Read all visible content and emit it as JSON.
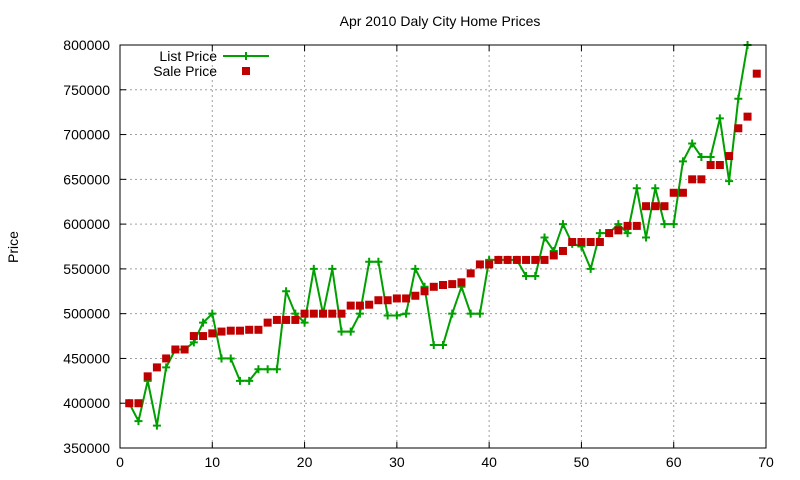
{
  "chart_data": {
    "type": "line",
    "title": "Apr 2010 Daly City Home Prices",
    "xlabel": "",
    "ylabel": "Price",
    "xlim": [
      0,
      70
    ],
    "ylim": [
      350000,
      800000
    ],
    "xticks": [
      0,
      10,
      20,
      30,
      40,
      50,
      60,
      70
    ],
    "yticks": [
      350000,
      400000,
      450000,
      500000,
      550000,
      600000,
      650000,
      700000,
      750000,
      800000
    ],
    "grid": true,
    "legend_position": "top-left",
    "x": [
      1,
      2,
      3,
      4,
      5,
      6,
      7,
      8,
      9,
      10,
      11,
      12,
      13,
      14,
      15,
      16,
      17,
      18,
      19,
      20,
      21,
      22,
      23,
      24,
      25,
      26,
      27,
      28,
      29,
      30,
      31,
      32,
      33,
      34,
      35,
      36,
      37,
      38,
      39,
      40,
      41,
      42,
      43,
      44,
      45,
      46,
      47,
      48,
      49,
      50,
      51,
      52,
      53,
      54,
      55,
      56,
      57,
      58,
      59,
      60,
      61,
      62,
      63,
      64,
      65,
      66,
      67,
      68,
      69
    ],
    "series": [
      {
        "name": "List Price",
        "marker": "plus",
        "color": "#00a000",
        "values": [
          400000,
          380000,
          425000,
          375000,
          440000,
          460000,
          460000,
          468000,
          490000,
          500000,
          450000,
          450000,
          425000,
          425000,
          438000,
          438000,
          438000,
          525000,
          500000,
          490000,
          550000,
          500000,
          550000,
          480000,
          480000,
          500000,
          558000,
          558000,
          498000,
          498000,
          500000,
          550000,
          530000,
          465000,
          465000,
          500000,
          530000,
          500000,
          500000,
          560000,
          560000,
          560000,
          560000,
          542000,
          542000,
          585000,
          570000,
          600000,
          578000,
          575000,
          550000,
          590000,
          590000,
          600000,
          590000,
          640000,
          585000,
          640000,
          600000,
          600000,
          670000,
          690000,
          675000,
          675000,
          718000,
          648000,
          740000,
          800000,
          null
        ]
      },
      {
        "name": "Sale Price",
        "marker": "square",
        "color": "#c00000",
        "values": [
          400000,
          400000,
          430000,
          440000,
          450000,
          460000,
          460000,
          475000,
          475000,
          478000,
          480000,
          481000,
          481000,
          482000,
          482000,
          490000,
          493000,
          493000,
          493000,
          500000,
          500000,
          500000,
          500000,
          500000,
          509000,
          509000,
          510000,
          515000,
          515000,
          517000,
          517000,
          520000,
          525000,
          530000,
          532000,
          533000,
          535000,
          545000,
          555000,
          555000,
          560000,
          560000,
          560000,
          560000,
          560000,
          560000,
          565000,
          570000,
          580000,
          580000,
          580000,
          580000,
          590000,
          593000,
          598000,
          598000,
          620000,
          620000,
          620000,
          635000,
          635000,
          650000,
          650000,
          666000,
          666000,
          676000,
          707000,
          720000,
          768000
        ]
      }
    ]
  }
}
